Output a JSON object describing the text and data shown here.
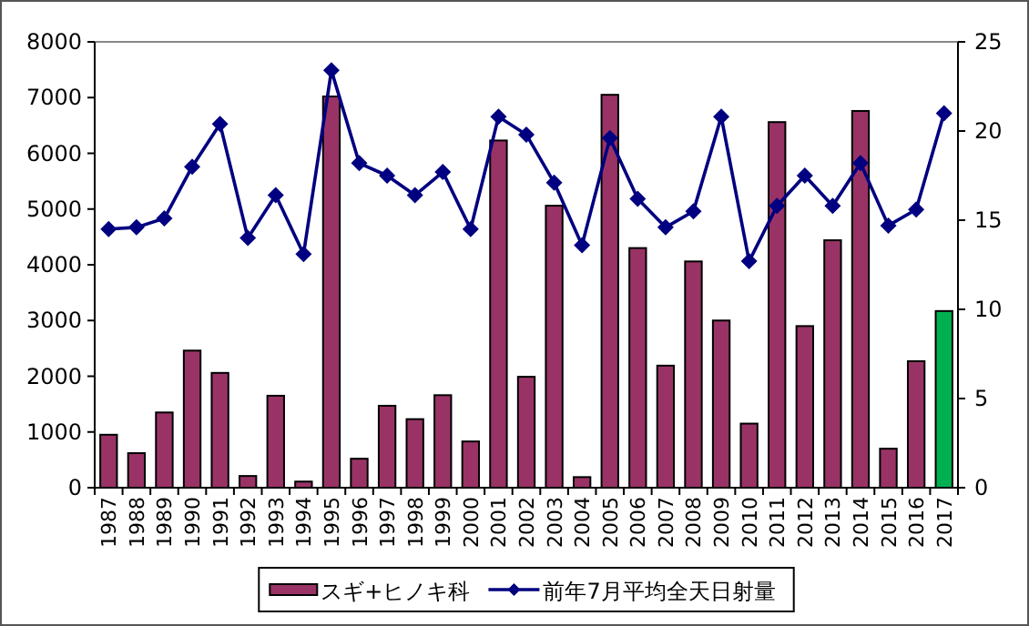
{
  "chart_data": {
    "type": "bar",
    "categories": [
      "1987",
      "1988",
      "1989",
      "1990",
      "1991",
      "1992",
      "1993",
      "1994",
      "1995",
      "1996",
      "1997",
      "1998",
      "1999",
      "2000",
      "2001",
      "2002",
      "2003",
      "2004",
      "2005",
      "2006",
      "2007",
      "2008",
      "2009",
      "2010",
      "2011",
      "2012",
      "2013",
      "2014",
      "2015",
      "2016",
      "2017"
    ],
    "series": [
      {
        "name": "スギ+ヒノキ科",
        "color": "#993366",
        "colors": [
          "#993366",
          "#993366",
          "#993366",
          "#993366",
          "#993366",
          "#993366",
          "#993366",
          "#993366",
          "#993366",
          "#993366",
          "#993366",
          "#993366",
          "#993366",
          "#993366",
          "#993366",
          "#993366",
          "#993366",
          "#993366",
          "#993366",
          "#993366",
          "#993366",
          "#993366",
          "#993366",
          "#993366",
          "#993366",
          "#993366",
          "#993366",
          "#993366",
          "#993366",
          "#993366",
          "#00b050"
        ],
        "values": [
          950,
          620,
          1350,
          2460,
          2060,
          210,
          1650,
          110,
          7020,
          520,
          1470,
          1230,
          1660,
          830,
          6230,
          1990,
          5060,
          190,
          7050,
          4300,
          2190,
          4060,
          3000,
          1150,
          6560,
          2900,
          4440,
          6760,
          700,
          2270,
          3170
        ]
      },
      {
        "name": "前年7月平均全天日射量",
        "type": "line",
        "axis": "y2",
        "color": "#000080",
        "marker": "diamond",
        "values": [
          14.5,
          14.6,
          15.1,
          18.0,
          20.4,
          14.0,
          16.4,
          13.1,
          23.4,
          18.2,
          17.5,
          16.4,
          17.7,
          14.5,
          20.8,
          19.8,
          17.1,
          13.6,
          19.6,
          16.2,
          14.6,
          15.5,
          20.8,
          12.7,
          15.8,
          17.5,
          15.8,
          18.2,
          14.7,
          15.6,
          21.0
        ]
      }
    ],
    "ylim": [
      0,
      8000
    ],
    "yticks": [
      0,
      1000,
      2000,
      3000,
      4000,
      5000,
      6000,
      7000,
      8000
    ],
    "y2lim": [
      0,
      25
    ],
    "y2ticks": [
      0,
      5,
      10,
      15,
      20,
      25
    ],
    "grid": false,
    "legend": "bottom"
  }
}
